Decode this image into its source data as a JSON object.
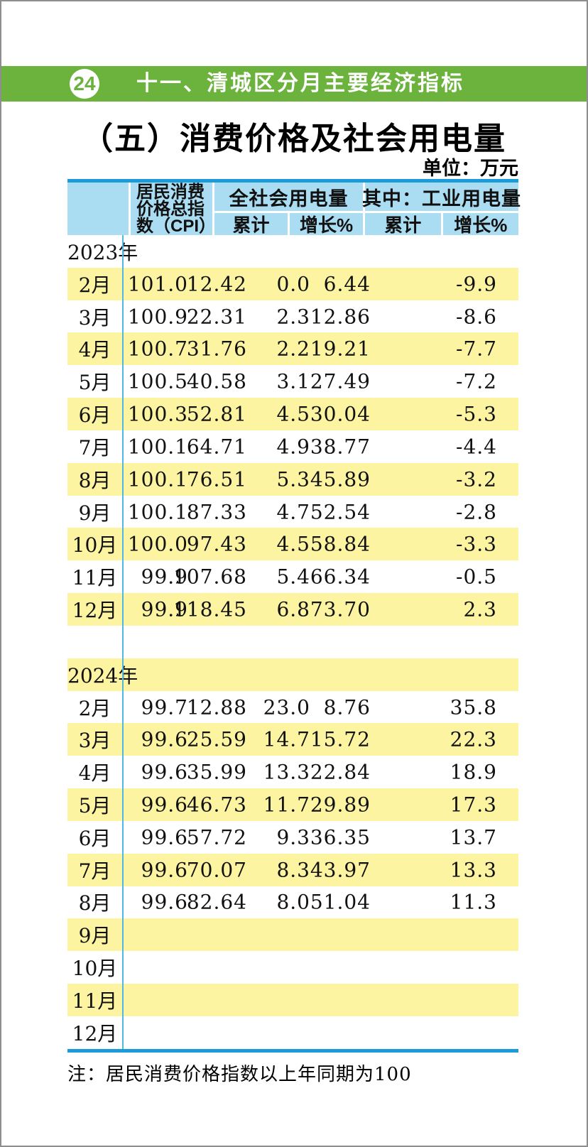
{
  "page": {
    "page_number": "24",
    "section_header": "十一、清城区分月主要经济指标",
    "title": "（五）消费价格及社会用电量",
    "unit_label": "单位：万元",
    "footnote": "注：居民消费价格指数以上年同期为100"
  },
  "colors": {
    "header_bar_green": "#6cb33e",
    "table_header_blue": "#aadcf2",
    "table_border_blue": "#1b9cd8",
    "row_highlight_yellow": "#fcf4a0",
    "column_divider_blue": "#4fb9e4"
  },
  "table": {
    "header": {
      "cpi_label": "居民消费价格总指数（CPI）",
      "cpi_label_lines": [
        "居民消费",
        "价格总指",
        "数（CPI）"
      ],
      "groups": [
        {
          "label": "全社会用电量",
          "sub_columns": [
            "累计",
            "增长%"
          ]
        },
        {
          "label": "其中：工业用电量",
          "sub_columns": [
            "累计",
            "增长%"
          ]
        }
      ]
    },
    "rows": [
      {
        "kind": "year",
        "label": "2023年",
        "highlight": false,
        "values": [
          "",
          "",
          "",
          "",
          ""
        ]
      },
      {
        "kind": "month",
        "label": "2月",
        "highlight": true,
        "values": [
          "101.0",
          "12.42",
          "0.0",
          "6.44",
          "-9.9"
        ]
      },
      {
        "kind": "month",
        "label": "3月",
        "highlight": false,
        "values": [
          "100.9",
          "22.31",
          "2.3",
          "12.86",
          "-8.6"
        ]
      },
      {
        "kind": "month",
        "label": "4月",
        "highlight": true,
        "values": [
          "100.7",
          "31.76",
          "2.2",
          "19.21",
          "-7.7"
        ]
      },
      {
        "kind": "month",
        "label": "5月",
        "highlight": false,
        "values": [
          "100.5",
          "40.58",
          "3.1",
          "27.49",
          "-7.2"
        ]
      },
      {
        "kind": "month",
        "label": "6月",
        "highlight": true,
        "values": [
          "100.3",
          "52.81",
          "4.5",
          "30.04",
          "-5.3"
        ]
      },
      {
        "kind": "month",
        "label": "7月",
        "highlight": false,
        "values": [
          "100.1",
          "64.71",
          "4.9",
          "38.77",
          "-4.4"
        ]
      },
      {
        "kind": "month",
        "label": "8月",
        "highlight": true,
        "values": [
          "100.1",
          "76.51",
          "5.3",
          "45.89",
          "-3.2"
        ]
      },
      {
        "kind": "month",
        "label": "9月",
        "highlight": false,
        "values": [
          "100.1",
          "87.33",
          "4.7",
          "52.54",
          "-2.8"
        ]
      },
      {
        "kind": "month",
        "label": "10月",
        "highlight": true,
        "values": [
          "100.0",
          "97.43",
          "4.5",
          "58.84",
          "-3.3"
        ]
      },
      {
        "kind": "month",
        "label": "11月",
        "highlight": false,
        "values": [
          "99.9",
          "107.68",
          "5.4",
          "66.34",
          "-0.5"
        ]
      },
      {
        "kind": "month",
        "label": "12月",
        "highlight": true,
        "values": [
          "99.9",
          "118.45",
          "6.8",
          "73.70",
          "2.3"
        ]
      },
      {
        "kind": "spacer",
        "label": "",
        "highlight": false,
        "values": [
          "",
          "",
          "",
          "",
          ""
        ]
      },
      {
        "kind": "year",
        "label": "2024年",
        "highlight": true,
        "values": [
          "",
          "",
          "",
          "",
          ""
        ]
      },
      {
        "kind": "month",
        "label": "2月",
        "highlight": false,
        "values": [
          "99.7",
          "12.88",
          "23.0",
          "8.76",
          "35.8"
        ]
      },
      {
        "kind": "month",
        "label": "3月",
        "highlight": true,
        "values": [
          "99.6",
          "25.59",
          "14.7",
          "15.72",
          "22.3"
        ]
      },
      {
        "kind": "month",
        "label": "4月",
        "highlight": false,
        "values": [
          "99.6",
          "35.99",
          "13.3",
          "22.84",
          "18.9"
        ]
      },
      {
        "kind": "month",
        "label": "5月",
        "highlight": true,
        "values": [
          "99.6",
          "46.73",
          "11.7",
          "29.89",
          "17.3"
        ]
      },
      {
        "kind": "month",
        "label": "6月",
        "highlight": false,
        "values": [
          "99.6",
          "57.72",
          "9.3",
          "36.35",
          "13.7"
        ]
      },
      {
        "kind": "month",
        "label": "7月",
        "highlight": true,
        "values": [
          "99.6",
          "70.07",
          "8.3",
          "43.97",
          "13.3"
        ]
      },
      {
        "kind": "month",
        "label": "8月",
        "highlight": false,
        "values": [
          "99.6",
          "82.64",
          "8.0",
          "51.04",
          "11.3"
        ]
      },
      {
        "kind": "month",
        "label": "9月",
        "highlight": true,
        "values": [
          "",
          "",
          "",
          "",
          ""
        ]
      },
      {
        "kind": "month",
        "label": "10月",
        "highlight": false,
        "values": [
          "",
          "",
          "",
          "",
          ""
        ]
      },
      {
        "kind": "month",
        "label": "11月",
        "highlight": true,
        "values": [
          "",
          "",
          "",
          "",
          ""
        ]
      },
      {
        "kind": "month",
        "label": "12月",
        "highlight": false,
        "values": [
          "",
          "",
          "",
          "",
          ""
        ]
      }
    ]
  }
}
